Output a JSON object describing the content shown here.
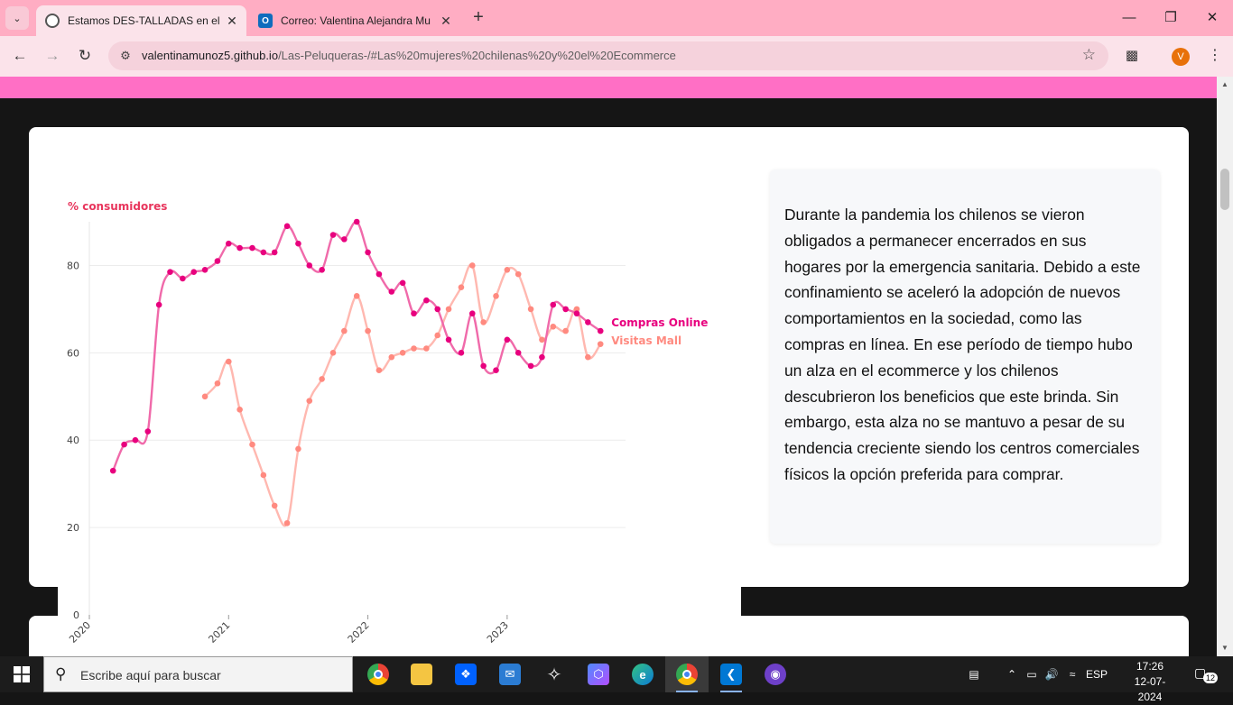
{
  "browser": {
    "tabs": [
      {
        "title": "Estamos DES-TALLADAS en el E",
        "active": true,
        "icon": "globe-icon"
      },
      {
        "title": "Correo: Valentina Alejandra Mu",
        "active": false,
        "icon": "outlook-icon"
      }
    ],
    "url_host": "valentinamunoz5.github.io",
    "url_path": "/Las-Peluqueras-/#Las%20mujeres%20chilenas%20y%20el%20Ecommerce",
    "profile_initial": "V"
  },
  "article": {
    "paragraph": "Durante la pandemia los chilenos se vieron obligados a permanecer encerrados en sus hogares por la emergencia sanitaria. Debido a este confinamiento se aceleró la adopción de nuevos comportamientos en la sociedad, como las compras en línea. En ese período de tiempo hubo un alza en el ecommerce y los chilenos descubrieron los beneficios que este brinda. Sin embargo, esta alza no se mantuvo a pesar de su tendencia creciente siendo los centros comerciales físicos la opción preferida para comprar."
  },
  "chart_data": {
    "type": "line",
    "ylabel": "% consumidores",
    "ylim": [
      0,
      90
    ],
    "yticks": [
      0,
      20,
      40,
      60,
      80
    ],
    "xlim": [
      2020.0,
      2023.85
    ],
    "xticks": [
      {
        "value": 2020.0,
        "label": "2020"
      },
      {
        "value": 2021.0,
        "label": "2021"
      },
      {
        "value": 2022.0,
        "label": "2022"
      },
      {
        "value": 2023.0,
        "label": "2023"
      }
    ],
    "grid": "horizontal",
    "legend": "end-of-line labels",
    "series": [
      {
        "name": "Compras Online",
        "color": "#e8007e",
        "line_color": "#f06aaa",
        "x": [
          2020.17,
          2020.25,
          2020.33,
          2020.42,
          2020.5,
          2020.58,
          2020.67,
          2020.75,
          2020.83,
          2020.92,
          2021.0,
          2021.08,
          2021.17,
          2021.25,
          2021.33,
          2021.42,
          2021.5,
          2021.58,
          2021.67,
          2021.75,
          2021.83,
          2021.92,
          2022.0,
          2022.08,
          2022.17,
          2022.25,
          2022.33,
          2022.42,
          2022.5,
          2022.58,
          2022.67,
          2022.75,
          2022.83,
          2022.92,
          2023.0,
          2023.08,
          2023.17,
          2023.25,
          2023.33,
          2023.42,
          2023.5,
          2023.58,
          2023.67
        ],
        "y": [
          33,
          39,
          40,
          42,
          71,
          78.5,
          77,
          78.5,
          79,
          81,
          85,
          84,
          84,
          83,
          83,
          89,
          85,
          80,
          79,
          87,
          86,
          90,
          83,
          78,
          74,
          76,
          69,
          72,
          70,
          63,
          60,
          69,
          57,
          56,
          63,
          60,
          57,
          59,
          71,
          70,
          69,
          67,
          65
        ]
      },
      {
        "name": "Visitas Mall",
        "color": "#ff8a80",
        "line_color": "#ffb8b0",
        "x": [
          2020.83,
          2020.92,
          2021.0,
          2021.08,
          2021.17,
          2021.25,
          2021.33,
          2021.42,
          2021.5,
          2021.58,
          2021.67,
          2021.75,
          2021.83,
          2021.92,
          2022.0,
          2022.08,
          2022.17,
          2022.25,
          2022.33,
          2022.42,
          2022.5,
          2022.58,
          2022.67,
          2022.75,
          2022.83,
          2022.92,
          2023.0,
          2023.08,
          2023.17,
          2023.25,
          2023.33,
          2023.42,
          2023.5,
          2023.58,
          2023.67
        ],
        "y": [
          50,
          53,
          58,
          47,
          39,
          32,
          25,
          21,
          38,
          49,
          54,
          60,
          65,
          73,
          65,
          56,
          59,
          60,
          61,
          61,
          64,
          70,
          75,
          80,
          67,
          73,
          79,
          78,
          70,
          63,
          66,
          65,
          70,
          59,
          62
        ]
      }
    ]
  },
  "taskbar": {
    "search_placeholder": "Escribe aquí para buscar",
    "language": "ESP",
    "time": "17:26",
    "date": "12-07-2024",
    "notifications": "12"
  }
}
